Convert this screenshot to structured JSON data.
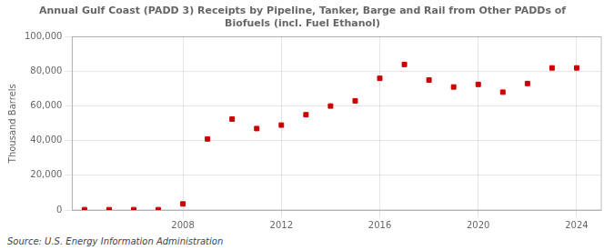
{
  "chart_data": {
    "type": "scatter",
    "title": "Annual Gulf Coast (PADD 3) Receipts by Pipeline, Tanker, Barge and Rail from Other PADDs of\nBiofuels (incl. Fuel Ethanol)",
    "ylabel": "Thousand Barrels",
    "source": "Source: U.S. Energy Information Administration",
    "x": [
      2004,
      2005,
      2006,
      2007,
      2008,
      2009,
      2010,
      2011,
      2012,
      2013,
      2014,
      2015,
      2016,
      2017,
      2018,
      2019,
      2020,
      2021,
      2022,
      2023,
      2024
    ],
    "values": [
      200,
      200,
      200,
      200,
      3500,
      41000,
      52500,
      47000,
      49000,
      55000,
      60000,
      63000,
      76000,
      84000,
      75000,
      71000,
      72500,
      68000,
      73000,
      82000,
      82000
    ],
    "color": "#cc0000",
    "marker": "square",
    "xlim": [
      2003.5,
      2025
    ],
    "xticks": [
      2008,
      2012,
      2016,
      2020,
      2024
    ],
    "ylim": [
      0,
      100000
    ],
    "yticks": [
      0,
      {
        "value": 20000,
        "label": "20,000"
      },
      {
        "value": 40000,
        "label": "40,000"
      },
      {
        "value": 60000,
        "label": "60,000"
      },
      {
        "value": 80000,
        "label": "80,000"
      },
      {
        "value": 100000,
        "label": "100,000"
      }
    ],
    "grid": true
  }
}
